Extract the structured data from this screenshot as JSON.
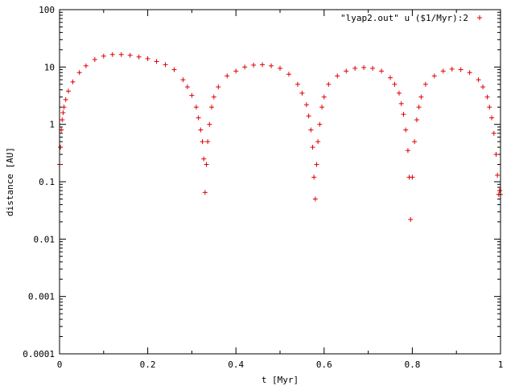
{
  "colors": {
    "series": "#e00000",
    "axes": "#000000",
    "background": "#ffffff"
  },
  "chart_data": {
    "type": "scatter",
    "title": "",
    "xlabel": "t [Myr]",
    "ylabel": "distance [AU]",
    "xlim": [
      0,
      1
    ],
    "ylim": [
      0.0001,
      100
    ],
    "yscale": "log",
    "grid": false,
    "legend_position": "top-right",
    "marker": "plus",
    "x_ticks": [
      {
        "value": 0,
        "label": "0"
      },
      {
        "value": 0.2,
        "label": "0.2"
      },
      {
        "value": 0.4,
        "label": "0.4"
      },
      {
        "value": 0.6,
        "label": "0.6"
      },
      {
        "value": 0.8,
        "label": "0.8"
      },
      {
        "value": 1,
        "label": "1"
      }
    ],
    "y_ticks": [
      {
        "value": 0.0001,
        "label": "0.0001"
      },
      {
        "value": 0.001,
        "label": "0.001"
      },
      {
        "value": 0.01,
        "label": "0.01"
      },
      {
        "value": 0.1,
        "label": "0.1"
      },
      {
        "value": 1,
        "label": "1"
      },
      {
        "value": 10,
        "label": "10"
      },
      {
        "value": 100,
        "label": "100"
      }
    ],
    "series": [
      {
        "name": "\"lyap2.out\" u ($1/Myr):2",
        "x": [
          0.0,
          0.002,
          0.004,
          0.006,
          0.008,
          0.01,
          0.014,
          0.02,
          0.03,
          0.045,
          0.06,
          0.08,
          0.1,
          0.12,
          0.14,
          0.16,
          0.18,
          0.2,
          0.22,
          0.24,
          0.26,
          0.28,
          0.29,
          0.3,
          0.31,
          0.315,
          0.32,
          0.324,
          0.327,
          0.33,
          0.333,
          0.336,
          0.34,
          0.345,
          0.35,
          0.36,
          0.38,
          0.4,
          0.42,
          0.44,
          0.46,
          0.48,
          0.5,
          0.52,
          0.54,
          0.55,
          0.56,
          0.565,
          0.57,
          0.574,
          0.577,
          0.58,
          0.583,
          0.586,
          0.59,
          0.595,
          0.6,
          0.61,
          0.63,
          0.65,
          0.67,
          0.69,
          0.71,
          0.73,
          0.75,
          0.76,
          0.77,
          0.775,
          0.78,
          0.785,
          0.79,
          0.793,
          0.796,
          0.8,
          0.805,
          0.81,
          0.815,
          0.82,
          0.83,
          0.85,
          0.87,
          0.89,
          0.91,
          0.93,
          0.95,
          0.96,
          0.97,
          0.975,
          0.98,
          0.985,
          0.99,
          0.993,
          0.996,
          0.998,
          1.0
        ],
        "y": [
          0.2,
          0.4,
          0.8,
          1.2,
          1.6,
          2.0,
          2.7,
          3.8,
          5.5,
          8.0,
          10.5,
          13.5,
          15.5,
          16.5,
          16.5,
          16.0,
          15.0,
          14.0,
          12.5,
          11.0,
          9.0,
          6.0,
          4.5,
          3.2,
          2.0,
          1.3,
          0.8,
          0.5,
          0.25,
          0.065,
          0.2,
          0.5,
          1.0,
          2.0,
          3.0,
          4.5,
          7.0,
          8.5,
          10.0,
          10.8,
          11.0,
          10.5,
          9.5,
          7.5,
          5.0,
          3.5,
          2.2,
          1.4,
          0.8,
          0.4,
          0.12,
          0.05,
          0.2,
          0.5,
          1.0,
          2.0,
          3.0,
          5.0,
          7.0,
          8.5,
          9.5,
          9.8,
          9.5,
          8.5,
          6.5,
          5.0,
          3.5,
          2.3,
          1.5,
          0.8,
          0.35,
          0.12,
          0.022,
          0.12,
          0.5,
          1.2,
          2.0,
          3.0,
          5.0,
          7.0,
          8.5,
          9.2,
          9.0,
          8.0,
          6.0,
          4.5,
          3.0,
          2.0,
          1.3,
          0.7,
          0.3,
          0.13,
          0.06,
          0.07,
          0.06
        ]
      }
    ]
  }
}
